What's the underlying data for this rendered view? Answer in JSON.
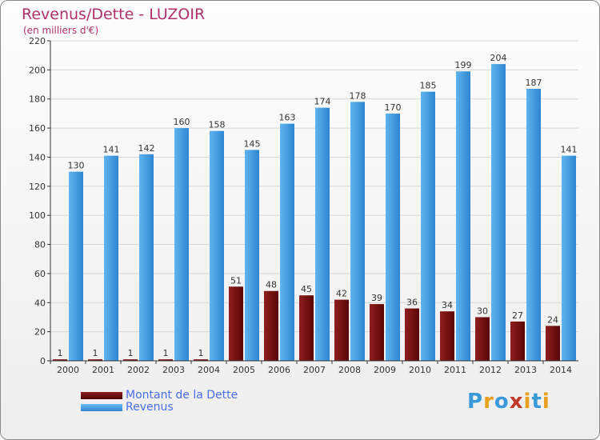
{
  "header": {
    "title": "Revenus/Dette - LUZOIR",
    "subtitle": "(en milliers d'€)"
  },
  "legend": {
    "items": [
      {
        "label": "Montant de la Dette",
        "color": "#6b0a0a"
      },
      {
        "label": "Revenus",
        "color": "#4aa3e6"
      }
    ]
  },
  "logo": {
    "text": "Proxiti",
    "letters": [
      "P",
      "r",
      "o",
      "x",
      "i",
      "t",
      "i"
    ],
    "colors": [
      "#3a9ad9",
      "#e8a020",
      "#3a9ad9",
      "#c0392b",
      "#e8a020",
      "#3a9ad9",
      "#e8a020"
    ]
  },
  "chart_data": {
    "type": "bar",
    "title": "Revenus/Dette - LUZOIR",
    "subtitle": "(en milliers d'€)",
    "categories": [
      "2000",
      "2001",
      "2002",
      "2003",
      "2004",
      "2005",
      "2006",
      "2007",
      "2008",
      "2009",
      "2010",
      "2011",
      "2012",
      "2013",
      "2014"
    ],
    "series": [
      {
        "name": "Montant de la Dette",
        "color": "#6b0a0a",
        "values": [
          1,
          1,
          1,
          1,
          1,
          51,
          48,
          45,
          42,
          39,
          36,
          34,
          30,
          27,
          24
        ]
      },
      {
        "name": "Revenus",
        "color": "#4aa3e6",
        "values": [
          130,
          141,
          142,
          160,
          158,
          145,
          163,
          174,
          178,
          170,
          185,
          199,
          204,
          187,
          141
        ]
      }
    ],
    "ylim": [
      0,
      220
    ],
    "yticks": [
      0,
      20,
      40,
      60,
      80,
      100,
      120,
      140,
      160,
      180,
      200,
      220
    ],
    "grid": true,
    "legend_position": "bottom-left"
  }
}
